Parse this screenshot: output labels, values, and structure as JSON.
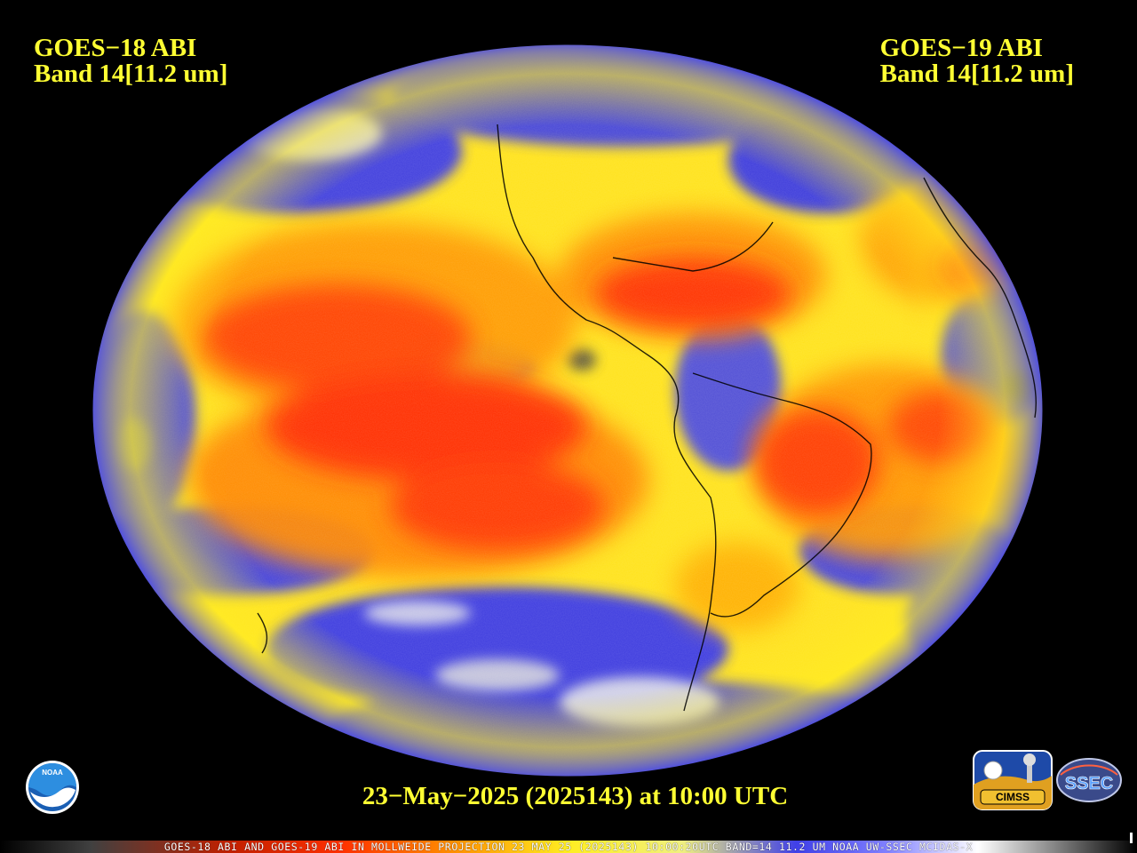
{
  "left_label": {
    "line1": "GOES−18 ABI",
    "line2": "Band 14[11.2 um]"
  },
  "right_label": {
    "line1": "GOES−19 ABI",
    "line2": "Band 14[11.2 um]"
  },
  "timestamp": "23−May−2025 (2025143) at 10:00 UTC",
  "colorbar_caption": "GOES-18 ABI AND GOES-19 ABI IN MOLLWEIDE PROJECTION 23 MAY 25 (2025143) 10:00:20UTC BAND=14 11.2 UM NOAA UW-SSEC MCIDAS-X",
  "logos": {
    "noaa": "NOAA",
    "cimss": "CIMSS",
    "ssec": "SSEC"
  },
  "colors": {
    "background": "#000000",
    "label_yellow": "#ffff33",
    "warm_red": "#ff2a00",
    "orange": "#ff8c00",
    "yellow": "#ffee22",
    "cold_blue": "#3333ee",
    "coldest_white": "#f2f2f2",
    "gray": "#9a9a9a"
  }
}
